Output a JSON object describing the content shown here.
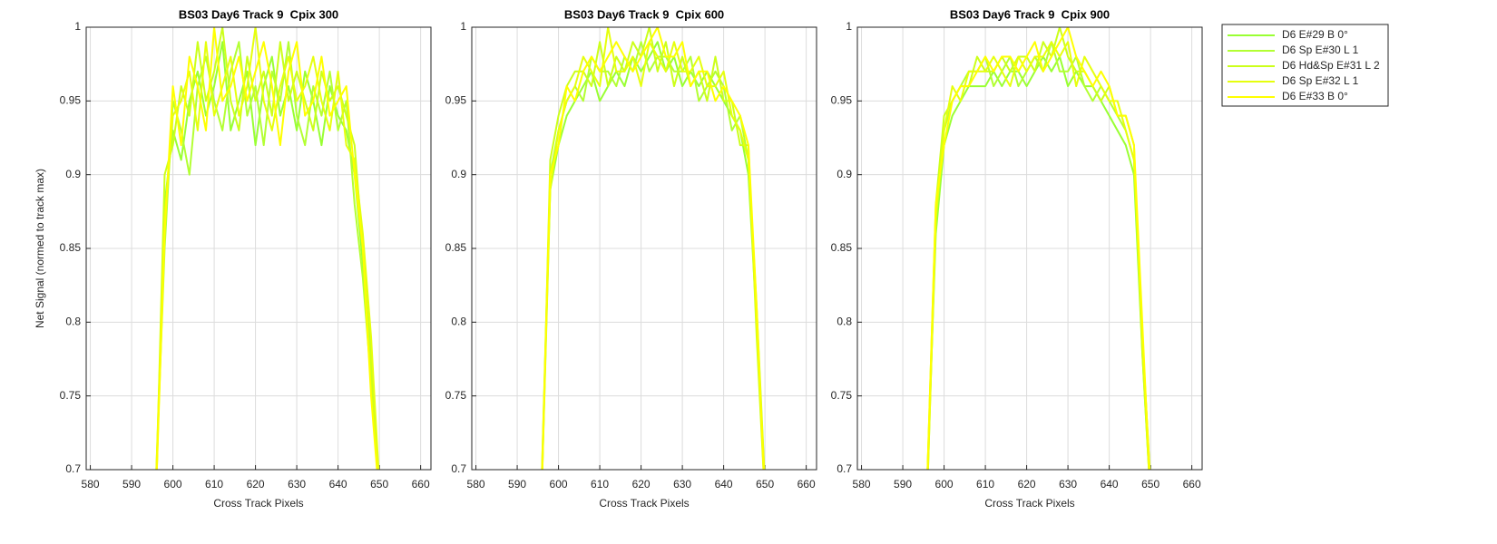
{
  "chart_data": [
    {
      "type": "line",
      "title": "BS03 Day6 Track 9  Cpix 300",
      "xlabel": "Cross Track Pixels",
      "ylabel": "Net Signal (normed to track max)",
      "x": [
        596,
        598,
        600,
        602,
        604,
        606,
        608,
        610,
        612,
        614,
        616,
        618,
        620,
        622,
        624,
        626,
        628,
        630,
        632,
        634,
        636,
        638,
        640,
        642,
        644,
        646,
        648,
        650
      ],
      "xlim": [
        579,
        662.5
      ],
      "xticks": [
        580,
        590,
        600,
        610,
        620,
        630,
        640,
        650,
        660
      ],
      "ylim": [
        0.7,
        1
      ],
      "yticks": [
        0.7,
        0.75,
        0.8,
        0.85,
        0.9,
        0.95,
        1
      ],
      "grid": true,
      "legend": "outside right",
      "series": [
        {
          "name": "D6 E#29 B 0°",
          "color": "#99ff33",
          "values": [
            0.69,
            0.88,
            0.93,
            0.91,
            0.95,
            0.97,
            0.94,
            0.96,
            0.99,
            0.93,
            0.95,
            0.97,
            0.92,
            0.96,
            0.98,
            0.94,
            0.96,
            0.93,
            0.97,
            0.95,
            0.92,
            0.96,
            0.94,
            0.93,
            0.9,
            0.84,
            0.78,
            0.68
          ]
        },
        {
          "name": "D6 Sp E#30 L 1",
          "color": "#b3ff33",
          "values": [
            0.7,
            0.85,
            0.95,
            0.93,
            0.9,
            0.96,
            0.98,
            0.95,
            0.93,
            0.97,
            0.99,
            0.94,
            0.96,
            0.92,
            0.97,
            0.95,
            0.99,
            0.94,
            0.92,
            0.96,
            0.94,
            0.97,
            0.93,
            0.95,
            0.88,
            0.83,
            0.76,
            0.69
          ]
        },
        {
          "name": "D6 Hd&Sp E#31 L 2",
          "color": "#ccff1a",
          "values": [
            0.69,
            0.9,
            0.92,
            0.96,
            0.94,
            0.99,
            0.95,
            0.97,
            1.0,
            0.95,
            0.93,
            0.98,
            0.95,
            0.97,
            0.94,
            0.99,
            0.95,
            0.97,
            0.95,
            0.93,
            0.97,
            0.95,
            0.96,
            0.94,
            0.92,
            0.85,
            0.77,
            0.68
          ]
        },
        {
          "name": "D6 Sp E#32 L 1",
          "color": "#e6ff0d",
          "values": [
            0.7,
            0.87,
            0.94,
            0.95,
            0.97,
            0.93,
            0.99,
            0.94,
            0.96,
            0.98,
            0.94,
            0.96,
            1.0,
            0.95,
            0.93,
            0.96,
            0.98,
            0.95,
            0.96,
            0.98,
            0.95,
            0.93,
            0.97,
            0.92,
            0.91,
            0.86,
            0.79,
            0.69
          ]
        },
        {
          "name": "D6 E#33 B 0°",
          "color": "#ffff00",
          "values": [
            0.69,
            0.86,
            0.96,
            0.92,
            0.98,
            0.96,
            0.93,
            1.0,
            0.95,
            0.96,
            0.98,
            0.95,
            0.97,
            0.99,
            0.96,
            0.92,
            0.97,
            0.99,
            0.94,
            0.95,
            0.98,
            0.94,
            0.95,
            0.96,
            0.9,
            0.85,
            0.75,
            0.68
          ]
        }
      ]
    },
    {
      "type": "line",
      "title": "BS03 Day6 Track 9  Cpix 600",
      "xlabel": "Cross Track Pixels",
      "x": [
        596,
        598,
        600,
        602,
        604,
        606,
        608,
        610,
        612,
        614,
        616,
        618,
        620,
        622,
        624,
        626,
        628,
        630,
        632,
        634,
        636,
        638,
        640,
        642,
        644,
        646,
        648,
        650
      ],
      "xlim": [
        579,
        662.5
      ],
      "xticks": [
        580,
        590,
        600,
        610,
        620,
        630,
        640,
        650,
        660
      ],
      "ylim": [
        0.7,
        1
      ],
      "yticks": [
        0.7,
        0.75,
        0.8,
        0.85,
        0.9,
        0.95,
        1
      ],
      "grid": true,
      "series": [
        {
          "color": "#99ff33",
          "values": [
            0.69,
            0.89,
            0.92,
            0.94,
            0.95,
            0.96,
            0.97,
            0.95,
            0.96,
            0.97,
            0.96,
            0.98,
            0.97,
            0.98,
            0.99,
            0.97,
            0.98,
            0.96,
            0.97,
            0.96,
            0.97,
            0.96,
            0.95,
            0.94,
            0.93,
            0.9,
            0.8,
            0.68
          ]
        },
        {
          "color": "#b3ff33",
          "values": [
            0.7,
            0.9,
            0.93,
            0.95,
            0.96,
            0.95,
            0.98,
            0.97,
            0.97,
            0.96,
            0.98,
            0.97,
            0.99,
            0.97,
            0.98,
            0.98,
            0.97,
            0.97,
            0.98,
            0.95,
            0.96,
            0.97,
            0.96,
            0.93,
            0.94,
            0.91,
            0.81,
            0.69
          ]
        },
        {
          "color": "#ccff1a",
          "values": [
            0.69,
            0.91,
            0.94,
            0.96,
            0.97,
            0.97,
            0.96,
            0.99,
            0.96,
            0.98,
            0.97,
            0.99,
            0.98,
            1.0,
            0.97,
            0.99,
            0.96,
            0.98,
            0.96,
            0.97,
            0.95,
            0.98,
            0.95,
            0.95,
            0.92,
            0.92,
            0.79,
            0.68
          ]
        },
        {
          "color": "#e6ff0d",
          "values": [
            0.7,
            0.89,
            0.93,
            0.95,
            0.96,
            0.98,
            0.97,
            0.96,
            1.0,
            0.97,
            0.97,
            0.98,
            0.96,
            0.99,
            0.98,
            0.97,
            0.99,
            0.97,
            0.97,
            0.98,
            0.96,
            0.96,
            0.97,
            0.94,
            0.93,
            0.91,
            0.8,
            0.69
          ]
        },
        {
          "color": "#ffff00",
          "values": [
            0.69,
            0.9,
            0.92,
            0.96,
            0.95,
            0.97,
            0.98,
            0.97,
            0.98,
            0.99,
            0.98,
            0.97,
            0.98,
            0.99,
            1.0,
            0.98,
            0.98,
            0.99,
            0.96,
            0.97,
            0.97,
            0.95,
            0.96,
            0.95,
            0.94,
            0.92,
            0.81,
            0.68
          ]
        }
      ]
    },
    {
      "type": "line",
      "title": "BS03 Day6 Track 9  Cpix 900",
      "xlabel": "Cross Track Pixels",
      "x": [
        596,
        598,
        600,
        602,
        604,
        606,
        608,
        610,
        612,
        614,
        616,
        618,
        620,
        622,
        624,
        626,
        628,
        630,
        632,
        634,
        636,
        638,
        640,
        642,
        644,
        646,
        648,
        650
      ],
      "xlim": [
        579,
        662.5
      ],
      "xticks": [
        580,
        590,
        600,
        610,
        620,
        630,
        640,
        650,
        660
      ],
      "ylim": [
        0.7,
        1
      ],
      "yticks": [
        0.7,
        0.75,
        0.8,
        0.85,
        0.9,
        0.95,
        1
      ],
      "grid": true,
      "series": [
        {
          "color": "#99ff33",
          "values": [
            0.7,
            0.86,
            0.92,
            0.94,
            0.95,
            0.96,
            0.96,
            0.96,
            0.97,
            0.96,
            0.97,
            0.97,
            0.96,
            0.97,
            0.98,
            0.97,
            0.98,
            0.96,
            0.97,
            0.96,
            0.96,
            0.95,
            0.94,
            0.93,
            0.92,
            0.9,
            0.78,
            0.68
          ]
        },
        {
          "color": "#b3ff33",
          "values": [
            0.69,
            0.87,
            0.93,
            0.95,
            0.96,
            0.97,
            0.97,
            0.98,
            0.96,
            0.97,
            0.98,
            0.96,
            0.97,
            0.98,
            0.97,
            0.99,
            0.97,
            0.97,
            0.98,
            0.96,
            0.95,
            0.96,
            0.95,
            0.94,
            0.93,
            0.91,
            0.79,
            0.69
          ]
        },
        {
          "color": "#ccff1a",
          "values": [
            0.7,
            0.88,
            0.94,
            0.95,
            0.96,
            0.96,
            0.98,
            0.97,
            0.97,
            0.98,
            0.97,
            0.98,
            0.98,
            0.97,
            0.99,
            0.98,
            1.0,
            0.98,
            0.97,
            0.97,
            0.96,
            0.95,
            0.96,
            0.94,
            0.94,
            0.92,
            0.78,
            0.68
          ]
        },
        {
          "color": "#e6ff0d",
          "values": [
            0.69,
            0.87,
            0.93,
            0.96,
            0.95,
            0.97,
            0.97,
            0.97,
            0.98,
            0.97,
            0.96,
            0.98,
            0.97,
            0.98,
            0.98,
            0.99,
            0.98,
            0.99,
            0.96,
            0.98,
            0.97,
            0.96,
            0.95,
            0.95,
            0.93,
            0.91,
            0.79,
            0.69
          ]
        },
        {
          "color": "#ffff00",
          "values": [
            0.7,
            0.88,
            0.92,
            0.95,
            0.96,
            0.96,
            0.97,
            0.98,
            0.97,
            0.98,
            0.98,
            0.97,
            0.98,
            0.99,
            0.97,
            0.98,
            0.99,
            1.0,
            0.98,
            0.97,
            0.96,
            0.97,
            0.96,
            0.94,
            0.94,
            0.92,
            0.8,
            0.68
          ]
        }
      ]
    }
  ]
}
